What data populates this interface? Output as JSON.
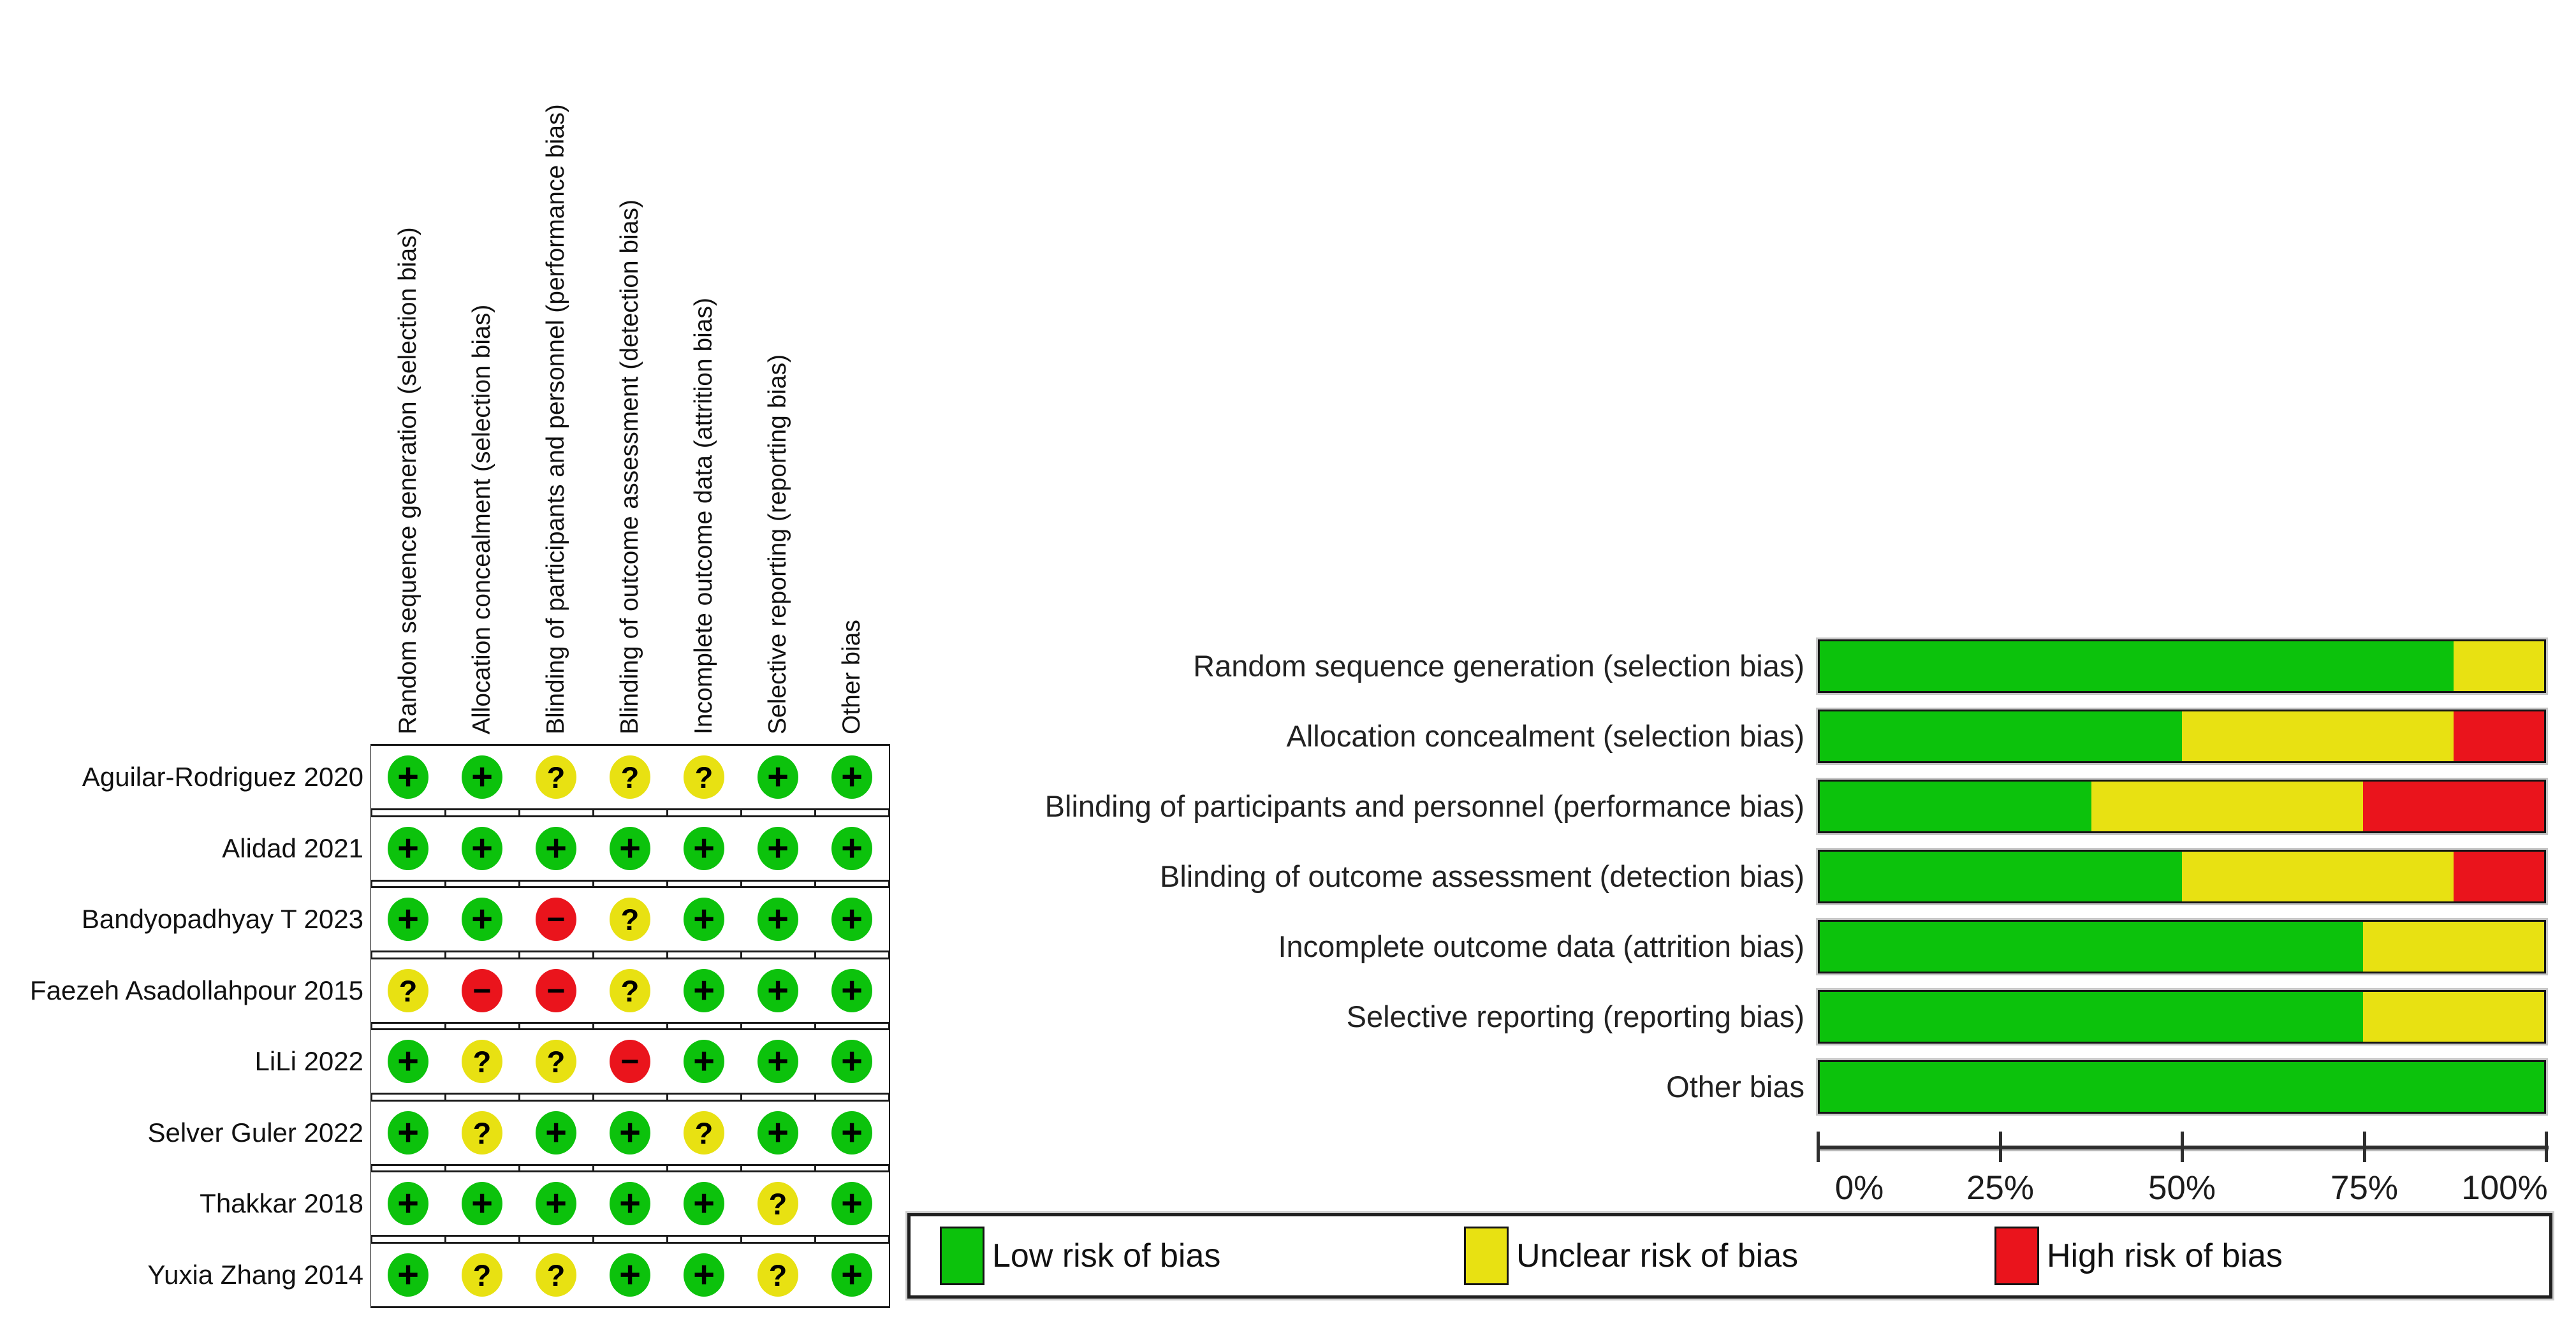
{
  "colors": {
    "low": "#0cc20c",
    "unclear": "#e8e112",
    "high": "#ea141c",
    "line": "#1a1a1a"
  },
  "risk_levels": [
    {
      "key": "low",
      "label": "Low risk of bias",
      "symbol": "+"
    },
    {
      "key": "unclear",
      "label": "Unclear risk of bias",
      "symbol": "?"
    },
    {
      "key": "high",
      "label": "High risk of bias",
      "symbol": "−"
    }
  ],
  "domains": [
    "Random sequence generation (selection bias)",
    "Allocation concealment (selection bias)",
    "Blinding of participants and personnel (performance bias)",
    "Blinding of outcome assessment (detection bias)",
    "Incomplete outcome data (attrition bias)",
    "Selective reporting (reporting bias)",
    "Other bias"
  ],
  "studies": [
    {
      "name": "Aguilar-Rodriguez 2020",
      "judgements": [
        "low",
        "low",
        "unclear",
        "unclear",
        "unclear",
        "low",
        "low"
      ]
    },
    {
      "name": "Alidad 2021",
      "judgements": [
        "low",
        "low",
        "low",
        "low",
        "low",
        "low",
        "low"
      ]
    },
    {
      "name": "Bandyopadhyay T 2023",
      "judgements": [
        "low",
        "low",
        "high",
        "unclear",
        "low",
        "low",
        "low"
      ]
    },
    {
      "name": "Faezeh Asadollahpour 2015",
      "judgements": [
        "unclear",
        "high",
        "high",
        "unclear",
        "low",
        "low",
        "low"
      ]
    },
    {
      "name": "LiLi 2022",
      "judgements": [
        "low",
        "unclear",
        "unclear",
        "high",
        "low",
        "low",
        "low"
      ]
    },
    {
      "name": "Selver Guler 2022",
      "judgements": [
        "low",
        "unclear",
        "low",
        "low",
        "unclear",
        "low",
        "low"
      ]
    },
    {
      "name": "Thakkar 2018",
      "judgements": [
        "low",
        "low",
        "low",
        "low",
        "low",
        "unclear",
        "low"
      ]
    },
    {
      "name": "Yuxia Zhang 2014",
      "judgements": [
        "low",
        "unclear",
        "unclear",
        "low",
        "low",
        "unclear",
        "low"
      ]
    }
  ],
  "chart_data": {
    "type": "bar",
    "orientation": "horizontal",
    "stacked": true,
    "categories": [
      "Random sequence generation (selection bias)",
      "Allocation concealment (selection bias)",
      "Blinding of participants and personnel (performance bias)",
      "Blinding of outcome assessment (detection bias)",
      "Incomplete outcome data (attrition bias)",
      "Selective reporting (reporting bias)",
      "Other bias"
    ],
    "series": [
      {
        "name": "Low risk of bias",
        "values": [
          87.5,
          50,
          37.5,
          50,
          75,
          75,
          100
        ]
      },
      {
        "name": "Unclear risk of bias",
        "values": [
          12.5,
          37.5,
          37.5,
          37.5,
          25,
          25,
          0
        ]
      },
      {
        "name": "High risk of bias",
        "values": [
          0,
          12.5,
          25,
          12.5,
          0,
          0,
          0
        ]
      }
    ],
    "xlim": [
      0,
      100
    ],
    "x_tick_labels": [
      "0%",
      "25%",
      "50%",
      "75%",
      "100%"
    ],
    "legend_position": "bottom",
    "grid": false
  }
}
